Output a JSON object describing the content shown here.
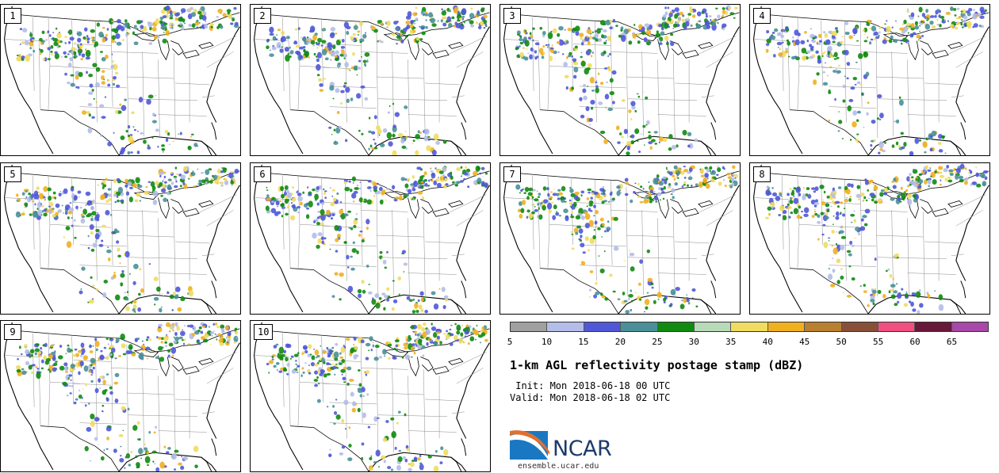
{
  "title": "1-km AGL reflectivity postage stamp (dBZ)",
  "init_line": " Init: Mon 2018-06-18 00 UTC",
  "valid_line": "Valid: Mon 2018-06-18 02 UTC",
  "logo": {
    "text": "NCAR",
    "url": "ensemble.ucar.edu"
  },
  "members": [
    "1",
    "2",
    "3",
    "4",
    "5",
    "6",
    "7",
    "8",
    "9",
    "10"
  ],
  "colorbar": {
    "ticks": [
      "5",
      "10",
      "15",
      "20",
      "25",
      "30",
      "35",
      "40",
      "45",
      "50",
      "55",
      "60",
      "65"
    ],
    "colors": [
      "#a0a0a0",
      "#b4bce8",
      "#5058d8",
      "#4a9098",
      "#108a10",
      "#b8dab8",
      "#f0dc60",
      "#f0b020",
      "#b88030",
      "#885038",
      "#f05080",
      "#681838",
      "#a848a8"
    ]
  },
  "map": {
    "land": "#ffffff",
    "borders": "#000000",
    "state_lines": "#8a8a8a"
  }
}
